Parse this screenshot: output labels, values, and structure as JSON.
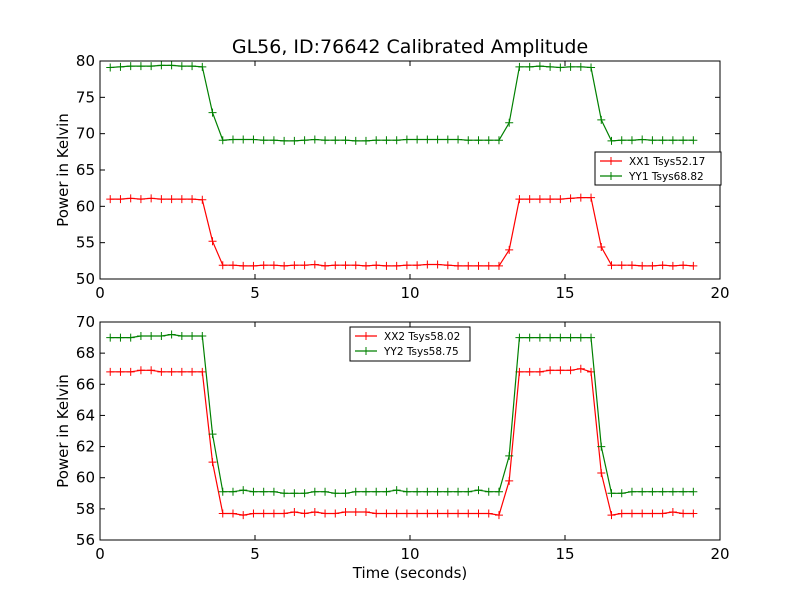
{
  "title": "GL56, ID:76642 Calibrated Amplitude",
  "chart_data": [
    {
      "type": "line",
      "title": "GL56, ID:76642 Calibrated Amplitude",
      "xlabel": "",
      "ylabel": "Power in Kelvin",
      "xlim": [
        0,
        20
      ],
      "ylim": [
        50,
        80
      ],
      "xticks": [
        "0",
        "5",
        "10",
        "15",
        "20"
      ],
      "yticks": [
        "50",
        "55",
        "60",
        "65",
        "70",
        "75",
        "80"
      ],
      "grid": false,
      "legend_position": "center-right",
      "x": [
        0.33,
        0.66,
        0.99,
        1.32,
        1.65,
        1.98,
        2.31,
        2.64,
        2.97,
        3.3,
        3.63,
        3.96,
        4.29,
        4.62,
        4.95,
        5.28,
        5.61,
        5.94,
        6.27,
        6.6,
        6.93,
        7.26,
        7.59,
        7.92,
        8.25,
        8.58,
        8.91,
        9.24,
        9.57,
        9.9,
        10.23,
        10.56,
        10.89,
        11.22,
        11.55,
        11.88,
        12.21,
        12.54,
        12.87,
        13.2,
        13.53,
        13.86,
        14.19,
        14.52,
        14.85,
        15.18,
        15.51,
        15.84,
        16.17,
        16.5,
        16.83,
        17.16,
        17.49,
        17.82,
        18.15,
        18.48,
        18.81,
        19.14
      ],
      "series": [
        {
          "name": "XX1 Tsys52.17",
          "color": "#ff0000",
          "values": [
            61.0,
            61.0,
            61.1,
            61.0,
            61.1,
            61.0,
            61.0,
            61.0,
            61.0,
            60.9,
            55.2,
            51.9,
            51.9,
            51.8,
            51.8,
            51.9,
            51.9,
            51.8,
            51.9,
            51.9,
            52.0,
            51.8,
            51.9,
            51.9,
            51.9,
            51.8,
            51.9,
            51.8,
            51.8,
            51.9,
            51.9,
            52.0,
            52.0,
            51.9,
            51.8,
            51.8,
            51.8,
            51.8,
            51.8,
            54.0,
            61.0,
            61.0,
            61.0,
            61.0,
            61.0,
            61.1,
            61.2,
            61.2,
            54.4,
            51.9,
            51.9,
            51.9,
            51.8,
            51.8,
            51.9,
            51.8,
            51.9,
            51.8
          ]
        },
        {
          "name": "YY1 Tsys68.82",
          "color": "#008000",
          "values": [
            79.1,
            79.2,
            79.3,
            79.3,
            79.3,
            79.4,
            79.4,
            79.3,
            79.3,
            79.2,
            72.9,
            69.1,
            69.2,
            69.2,
            69.2,
            69.1,
            69.1,
            69.0,
            69.0,
            69.1,
            69.2,
            69.1,
            69.1,
            69.1,
            69.0,
            69.0,
            69.1,
            69.1,
            69.1,
            69.2,
            69.2,
            69.2,
            69.2,
            69.2,
            69.2,
            69.1,
            69.1,
            69.1,
            69.1,
            71.5,
            79.2,
            79.2,
            79.3,
            79.2,
            79.1,
            79.2,
            79.2,
            79.1,
            71.9,
            69.0,
            69.1,
            69.1,
            69.2,
            69.1,
            69.1,
            69.1,
            69.1,
            69.1
          ]
        }
      ]
    },
    {
      "type": "line",
      "title": "",
      "xlabel": "Time (seconds)",
      "ylabel": "Power in Kelvin",
      "xlim": [
        0,
        20
      ],
      "ylim": [
        56,
        70
      ],
      "xticks": [
        "0",
        "5",
        "10",
        "15",
        "20"
      ],
      "yticks": [
        "56",
        "58",
        "60",
        "62",
        "64",
        "66",
        "68",
        "70"
      ],
      "grid": false,
      "legend_position": "upper-center",
      "x": [
        0.33,
        0.66,
        0.99,
        1.32,
        1.65,
        1.98,
        2.31,
        2.64,
        2.97,
        3.3,
        3.63,
        3.96,
        4.29,
        4.62,
        4.95,
        5.28,
        5.61,
        5.94,
        6.27,
        6.6,
        6.93,
        7.26,
        7.59,
        7.92,
        8.25,
        8.58,
        8.91,
        9.24,
        9.57,
        9.9,
        10.23,
        10.56,
        10.89,
        11.22,
        11.55,
        11.88,
        12.21,
        12.54,
        12.87,
        13.2,
        13.53,
        13.86,
        14.19,
        14.52,
        14.85,
        15.18,
        15.51,
        15.84,
        16.17,
        16.5,
        16.83,
        17.16,
        17.49,
        17.82,
        18.15,
        18.48,
        18.81,
        19.14
      ],
      "series": [
        {
          "name": "XX2 Tsys58.02",
          "color": "#ff0000",
          "values": [
            66.8,
            66.8,
            66.8,
            66.9,
            66.9,
            66.8,
            66.8,
            66.8,
            66.8,
            66.8,
            61.0,
            57.7,
            57.7,
            57.6,
            57.7,
            57.7,
            57.7,
            57.7,
            57.8,
            57.7,
            57.8,
            57.7,
            57.7,
            57.8,
            57.8,
            57.8,
            57.7,
            57.7,
            57.7,
            57.7,
            57.7,
            57.7,
            57.7,
            57.7,
            57.7,
            57.7,
            57.7,
            57.7,
            57.6,
            59.8,
            66.8,
            66.8,
            66.8,
            66.9,
            66.9,
            66.9,
            67.0,
            66.8,
            60.3,
            57.6,
            57.7,
            57.7,
            57.7,
            57.7,
            57.7,
            57.8,
            57.7,
            57.7
          ]
        },
        {
          "name": "YY2 Tsys58.75",
          "color": "#008000",
          "values": [
            69.0,
            69.0,
            69.0,
            69.1,
            69.1,
            69.1,
            69.2,
            69.1,
            69.1,
            69.1,
            62.8,
            59.1,
            59.1,
            59.2,
            59.1,
            59.1,
            59.1,
            59.0,
            59.0,
            59.0,
            59.1,
            59.1,
            59.0,
            59.0,
            59.1,
            59.1,
            59.1,
            59.1,
            59.2,
            59.1,
            59.1,
            59.1,
            59.1,
            59.1,
            59.1,
            59.1,
            59.2,
            59.1,
            59.1,
            61.4,
            69.0,
            69.0,
            69.0,
            69.0,
            69.0,
            69.0,
            69.0,
            69.0,
            62.0,
            59.0,
            59.0,
            59.1,
            59.1,
            59.1,
            59.1,
            59.1,
            59.1,
            59.1
          ]
        }
      ]
    }
  ]
}
